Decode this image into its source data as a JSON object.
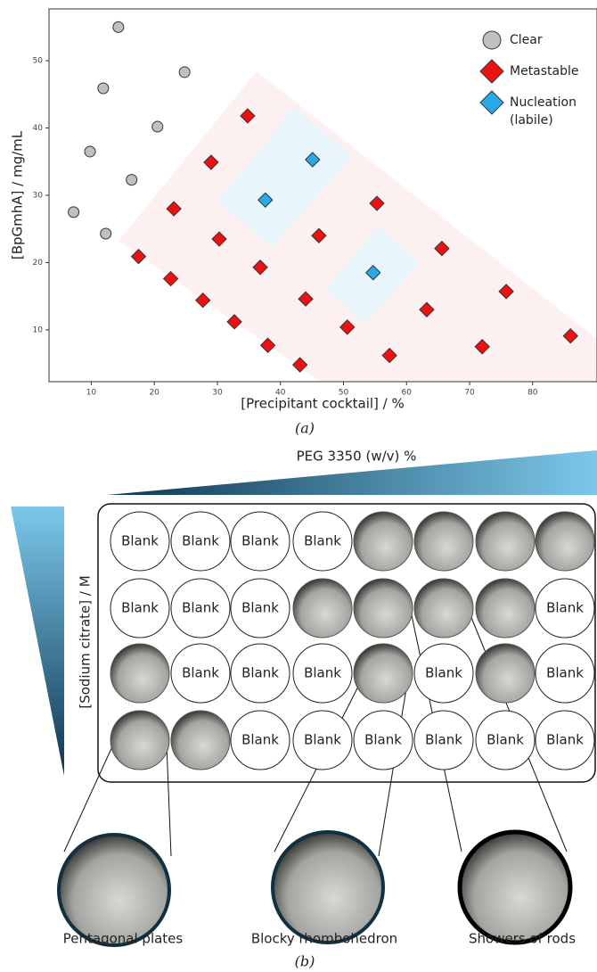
{
  "chart_data": {
    "type": "scatter",
    "xlabel": "[Precipitant cocktail] / %",
    "ylabel": "[BpGmhA] / mg/mL",
    "xlim": [
      3.3,
      90.2
    ],
    "ylim": [
      2.3,
      57.7
    ],
    "xticks": [
      10,
      20,
      30,
      40,
      50,
      60,
      70,
      80
    ],
    "yticks": [
      10,
      20,
      30,
      40,
      50
    ],
    "series": [
      {
        "name": "Clear",
        "color": "#c0c0c0",
        "marker": "circle",
        "x": [
          14.3,
          24.8,
          11.9,
          20.5,
          9.8,
          16.4,
          7.2,
          12.3
        ],
        "values": [
          55.0,
          48.3,
          45.9,
          40.2,
          36.5,
          32.3,
          27.5,
          24.3
        ]
      },
      {
        "name": "Metastable",
        "color": "#ee1111",
        "marker": "diamond",
        "x": [
          34.8,
          29.0,
          23.1,
          55.3,
          30.3,
          46.1,
          17.5,
          65.6,
          36.8,
          22.6,
          75.8,
          27.7,
          44.0,
          63.2,
          32.7,
          50.6,
          38.0,
          86.0,
          72.0,
          57.3,
          43.1
        ],
        "values": [
          41.8,
          34.9,
          28.0,
          28.8,
          23.5,
          24.0,
          20.9,
          22.1,
          19.3,
          17.6,
          15.7,
          14.4,
          14.6,
          13.0,
          11.2,
          10.4,
          7.7,
          9.1,
          7.5,
          6.2,
          4.8
        ]
      },
      {
        "name": "Nucleation (labile)",
        "color": "#29a9e8",
        "marker": "diamond",
        "x": [
          45.1,
          37.6,
          54.7
        ],
        "values": [
          35.3,
          29.3,
          18.5
        ]
      }
    ]
  },
  "panel_a": "(a)",
  "panel_b": {
    "label": "(b)",
    "x_gradient": "PEG 3350 (w/v) %",
    "y_gradient": "[Sodium citrate] / M",
    "wells": [
      [
        "Blank",
        "Blank",
        "Blank",
        "Blank",
        null,
        null,
        null,
        null
      ],
      [
        "Blank",
        "Blank",
        "Blank",
        null,
        null,
        null,
        null,
        "Blank"
      ],
      [
        null,
        "Blank",
        "Blank",
        "Blank",
        null,
        "Blank",
        null,
        "Blank"
      ],
      [
        null,
        null,
        "Blank",
        "Blank",
        "Blank",
        "Blank",
        "Blank",
        "Blank"
      ]
    ],
    "zooms": [
      "Pentagonal plates",
      "Blocky rhombohedron",
      "Showers of rods"
    ]
  }
}
